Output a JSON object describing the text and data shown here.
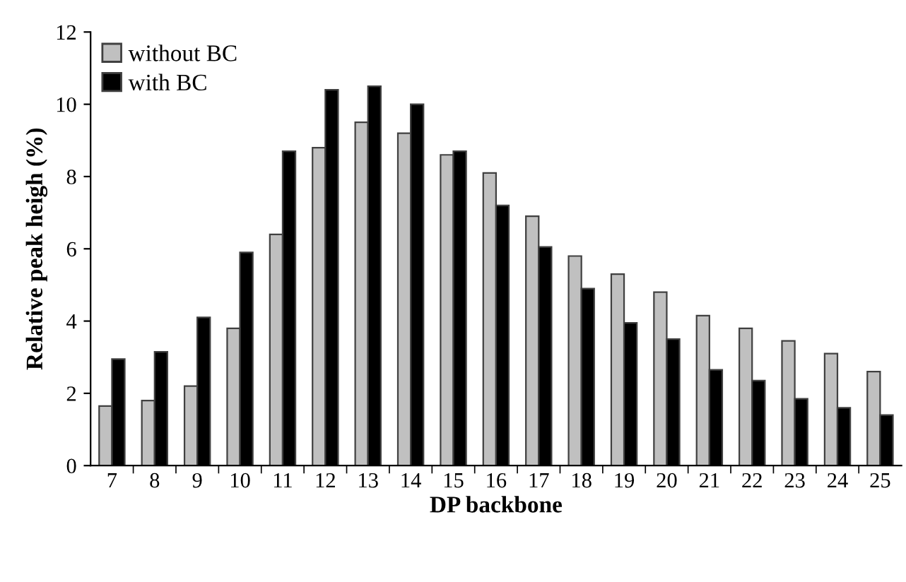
{
  "chart_data": {
    "type": "bar",
    "xlabel": "DP backbone",
    "ylabel": "Relative peak heigh (%)",
    "categories": [
      "7",
      "8",
      "9",
      "10",
      "11",
      "12",
      "13",
      "14",
      "15",
      "16",
      "17",
      "18",
      "19",
      "20",
      "21",
      "22",
      "23",
      "24",
      "25"
    ],
    "series": [
      {
        "name": "without BC",
        "color": "#c0c0c0",
        "values": [
          1.65,
          1.8,
          2.2,
          3.8,
          6.4,
          8.8,
          9.5,
          9.2,
          8.6,
          8.1,
          6.9,
          5.8,
          5.3,
          4.8,
          4.15,
          3.8,
          3.45,
          3.1,
          2.6
        ]
      },
      {
        "name": "with BC",
        "color": "#000000",
        "values": [
          2.95,
          3.15,
          4.1,
          5.9,
          8.7,
          10.4,
          10.5,
          10.0,
          8.7,
          7.2,
          6.05,
          4.9,
          3.95,
          3.5,
          2.65,
          2.35,
          1.85,
          1.6,
          1.4
        ]
      }
    ],
    "ylim": [
      0,
      12
    ],
    "yticks": [
      0,
      2,
      4,
      6,
      8,
      10,
      12
    ],
    "grid": false,
    "legend": "top left"
  }
}
